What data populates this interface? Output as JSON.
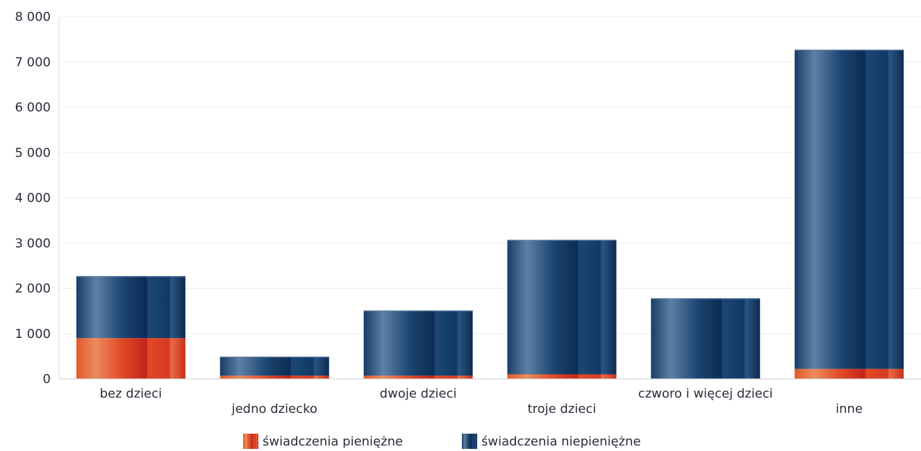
{
  "chart_data": {
    "type": "bar",
    "stacked": true,
    "categories": [
      "bez dzieci",
      "jedno dziecko",
      "dwoje dzieci",
      "troje dzieci",
      "czworo i więcej dzieci",
      "inne"
    ],
    "series": [
      {
        "name": "świadczenia pieniężne",
        "values": [
          900,
          70,
          70,
          100,
          0,
          220
        ],
        "color": "#d9391f"
      },
      {
        "name": "świadczenia niepieniężne",
        "values": [
          1370,
          420,
          1440,
          2970,
          1780,
          7050
        ],
        "color": "#0f3c6b"
      }
    ],
    "ylim": [
      0,
      8000
    ],
    "yticks": [
      "0",
      "1 000",
      "2 000",
      "3 000",
      "4 000",
      "5 000",
      "6 000",
      "7 000",
      "8 000"
    ],
    "grid": true,
    "legend_position": "bottom-center"
  }
}
